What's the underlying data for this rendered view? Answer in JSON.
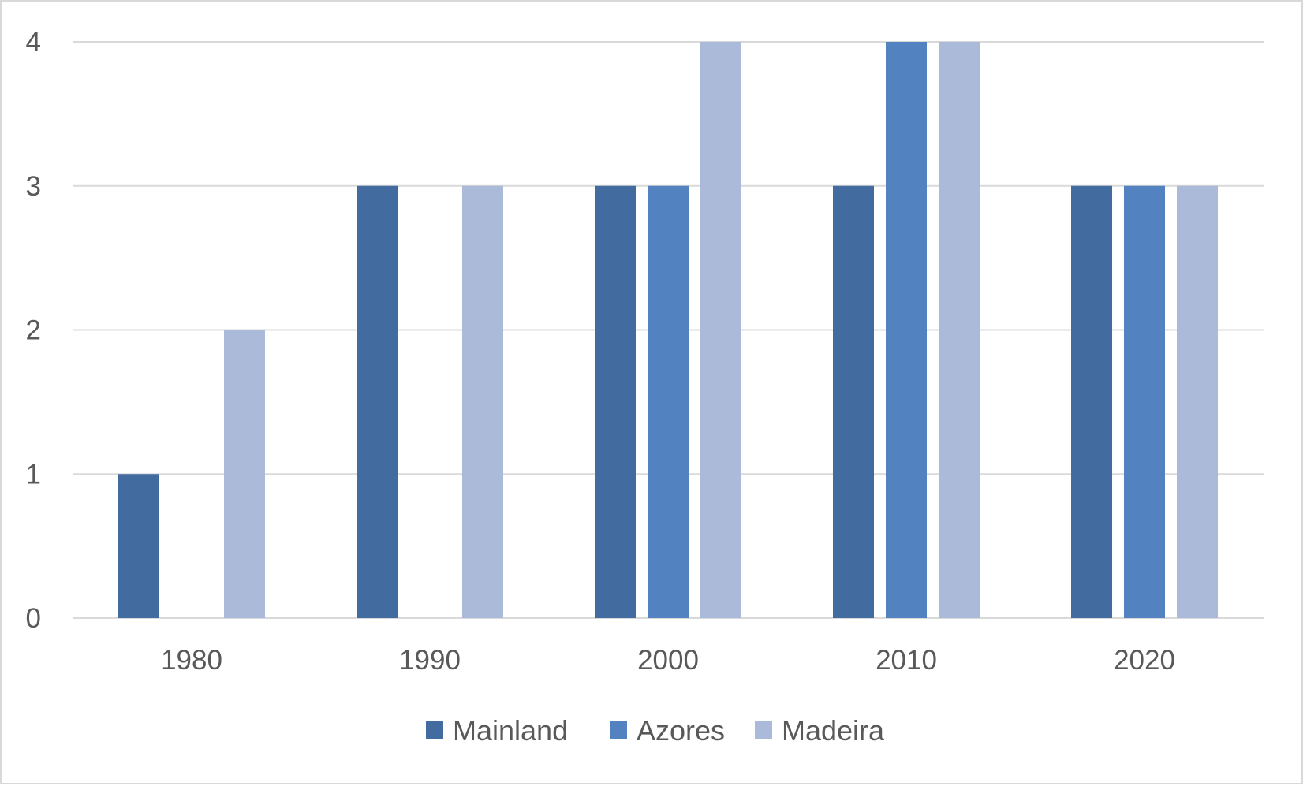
{
  "chart_data": {
    "type": "bar",
    "categories": [
      "1980",
      "1990",
      "2000",
      "2010",
      "2020"
    ],
    "series": [
      {
        "name": "Mainland",
        "values": [
          1,
          3,
          3,
          3,
          3
        ],
        "color": "#426b9f"
      },
      {
        "name": "Azores",
        "values": [
          0,
          0,
          3,
          4,
          3
        ],
        "color": "#5283c0"
      },
      {
        "name": "Madeira",
        "values": [
          2,
          3,
          4,
          4,
          3
        ],
        "color": "#abbad9"
      }
    ],
    "y_ticks": [
      "0",
      "1",
      "2",
      "3",
      "4"
    ],
    "ylim": [
      0,
      4
    ],
    "grid": true,
    "gridline_color": "#d9d9d9",
    "legend_position": "bottom",
    "title": "",
    "xlabel": "",
    "ylabel": ""
  }
}
